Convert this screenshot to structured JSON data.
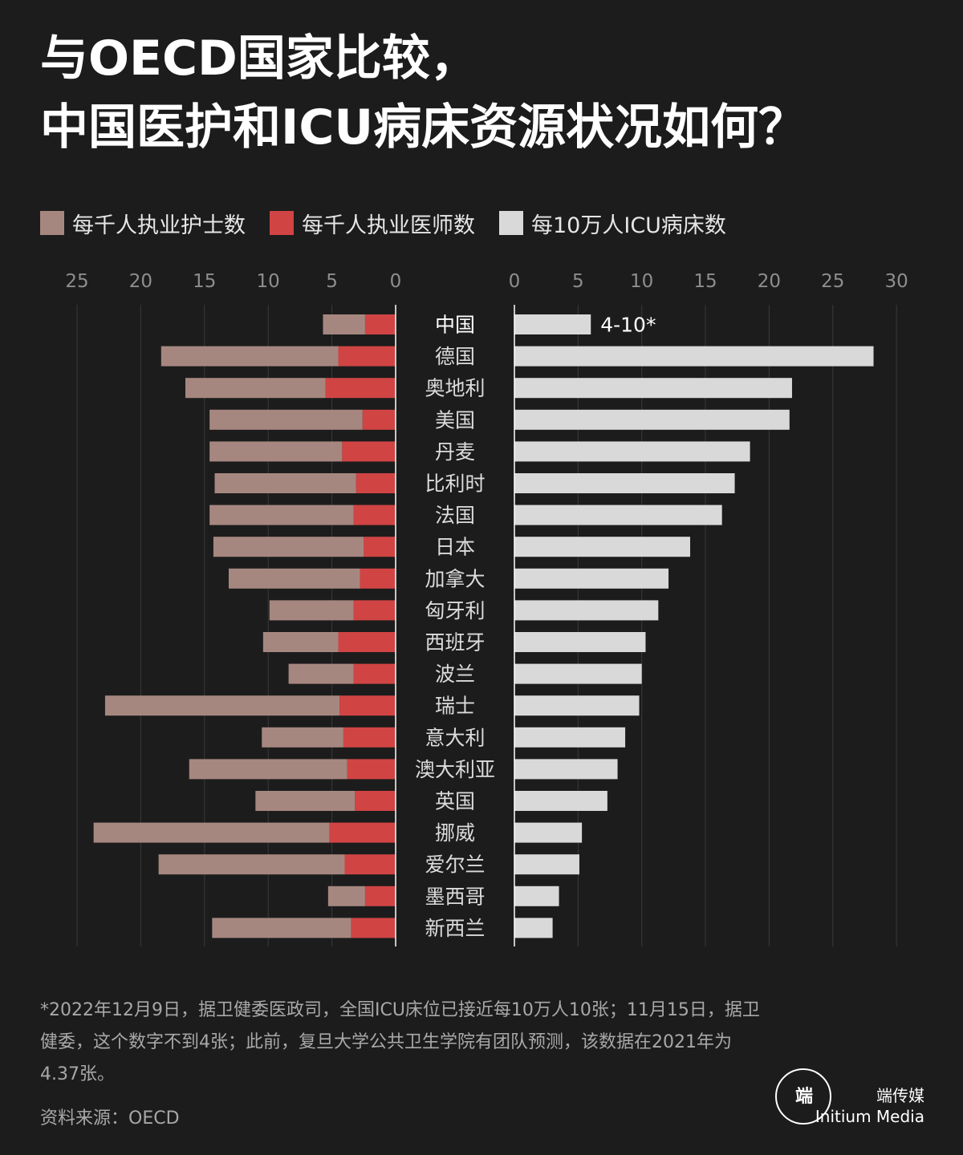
{
  "title": {
    "line1": "与OECD国家比较，",
    "line2": "中国医护和ICU病床资源状况如何？"
  },
  "legend": {
    "nurses": "每千人执业护士数",
    "doctors": "每千人执业医师数",
    "icu": "每10万人ICU病床数"
  },
  "colors": {
    "nurses": "#a68780",
    "doctors": "#d14444",
    "icu": "#d9d9d9",
    "background": "#1c1c1c"
  },
  "chart_data": {
    "type": "bar",
    "categories": [
      "中国",
      "德国",
      "奥地利",
      "美国",
      "丹麦",
      "比利时",
      "法国",
      "日本",
      "加拿大",
      "匈牙利",
      "西班牙",
      "波兰",
      "瑞士",
      "意大利",
      "澳大利亚",
      "英国",
      "挪威",
      "爱尔兰",
      "墨西哥",
      "新西兰"
    ],
    "series": [
      {
        "name": "每千人执业护士数",
        "values": [
          3.3,
          13.9,
          11.0,
          12.0,
          10.4,
          11.1,
          11.3,
          11.8,
          10.3,
          6.6,
          5.9,
          5.1,
          18.4,
          6.4,
          12.4,
          7.8,
          18.5,
          14.6,
          2.9,
          10.9
        ]
      },
      {
        "name": "每千人执业医师数",
        "values": [
          2.4,
          4.5,
          5.5,
          2.6,
          4.2,
          3.1,
          3.3,
          2.5,
          2.8,
          3.3,
          4.5,
          3.3,
          4.4,
          4.1,
          3.8,
          3.2,
          5.2,
          4.0,
          2.4,
          3.5
        ]
      },
      {
        "name": "每10万人ICU病床数",
        "values": [
          6.0,
          28.2,
          21.8,
          21.6,
          18.5,
          17.3,
          16.3,
          13.8,
          12.1,
          11.3,
          10.3,
          10.0,
          9.8,
          8.7,
          8.1,
          7.3,
          5.3,
          5.1,
          3.5,
          3.0
        ]
      }
    ],
    "china_icu_label": "4-10*",
    "left_axis": {
      "ticks": [
        "25",
        "20",
        "15",
        "10",
        "5",
        "0"
      ],
      "range": [
        0,
        25
      ]
    },
    "right_axis": {
      "ticks": [
        "0",
        "5",
        "10",
        "15",
        "20",
        "25",
        "30"
      ],
      "range": [
        0,
        30
      ]
    }
  },
  "footnote": "*2022年12月9日，据卫健委医政司，全国ICU床位已接近每10万人10张；11月15日，据卫健委，这个数字不到4张；此前，复旦大学公共卫生学院有团队预测，该数据在2021年为4.37张。",
  "source": "资料来源：OECD",
  "brand": {
    "mark": "端",
    "cn": "端传媒",
    "en": "Initium Media"
  }
}
